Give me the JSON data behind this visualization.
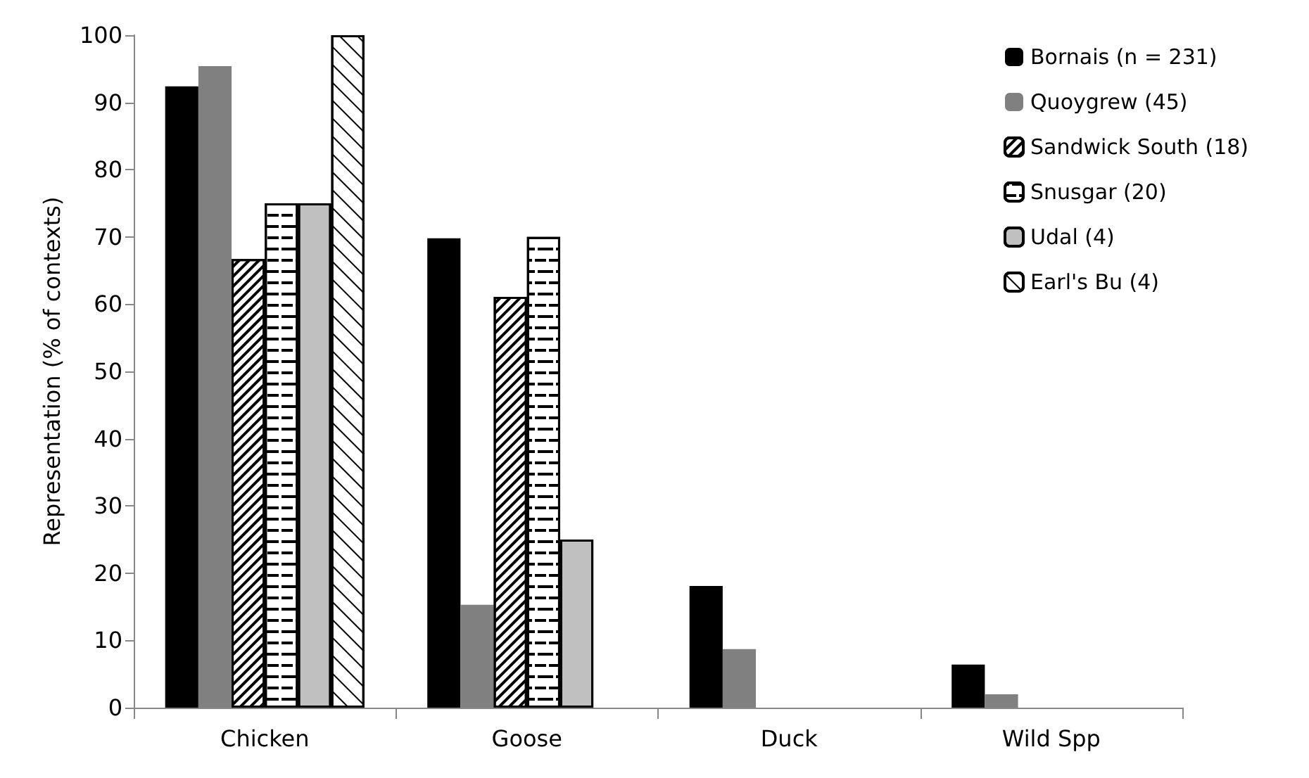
{
  "chart_data": {
    "type": "bar",
    "ylabel": "Representation (% of contexts)",
    "categories": [
      "Chicken",
      "Goose",
      "Duck",
      "Wild Spp"
    ],
    "series": [
      {
        "name": "Bornais (n = 231)",
        "color": "#000000",
        "values": [
          92.4,
          69.8,
          18.1,
          6.4
        ]
      },
      {
        "name": "Quoygrew (45)",
        "color": "#808080",
        "values": [
          95.4,
          15.3,
          8.7,
          2.0
        ]
      },
      {
        "name": "Sandwick South (18)",
        "color": "#ffffff",
        "values": [
          66.7,
          61.1,
          null,
          null
        ]
      },
      {
        "name": "Snusgar (20)",
        "color": "#ffffff",
        "values": [
          75.0,
          70.0,
          null,
          null
        ]
      },
      {
        "name": "Udal (4)",
        "color": "#c0c0c0",
        "values": [
          75.0,
          25.0,
          null,
          null
        ]
      },
      {
        "name": "Earl's Bu (4)",
        "color": "#ffffff",
        "values": [
          100,
          null,
          null,
          null
        ]
      }
    ],
    "ylim": [
      0,
      100
    ],
    "yticks": [
      0,
      10,
      20,
      30,
      40,
      50,
      60,
      70,
      80,
      90,
      100
    ],
    "grid": false,
    "legend": "top right"
  }
}
